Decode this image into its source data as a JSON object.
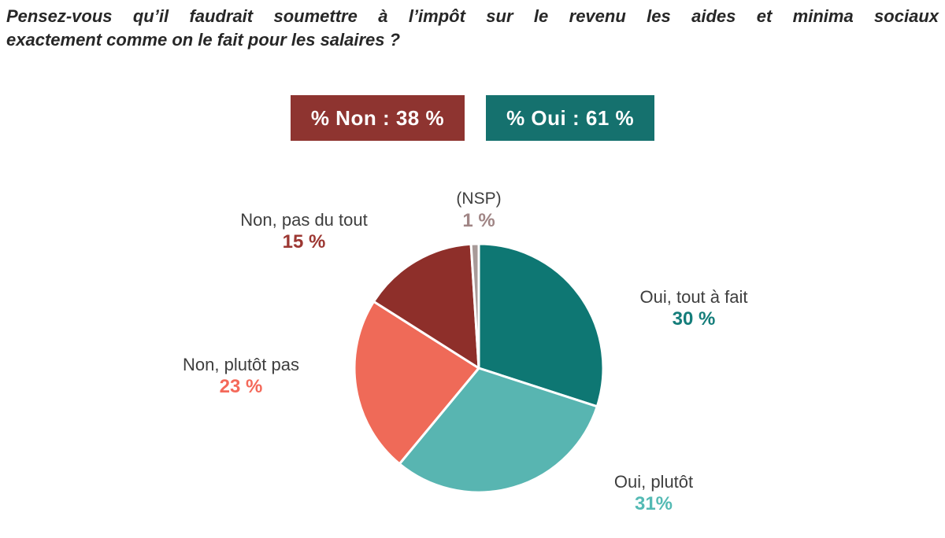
{
  "title": {
    "line1": "Pensez-vous qu’il faudrait soumettre à l’impôt sur le revenu les aides et minima sociaux",
    "line2": "exactement comme on le fait pour les salaires ?"
  },
  "summary_badges": {
    "non": {
      "label": "% Non : 38 %",
      "background": "#8e3430"
    },
    "oui": {
      "label": "% Oui : 61 %",
      "background": "#15716e"
    }
  },
  "chart_data": {
    "type": "pie",
    "title": "Pensez-vous qu’il faudrait soumettre à l’impôt sur le revenu les aides et minima sociaux exactement comme on le fait pour les salaires ?",
    "start_angle": "12 o'clock",
    "direction": "clockwise",
    "totals": {
      "non_pct": 38,
      "oui_pct": 61
    },
    "slices": [
      {
        "label": "Oui, tout à fait",
        "value": 30,
        "value_label": "30 %",
        "color": "#0e7773",
        "text_color": "#147d7a"
      },
      {
        "label": "Oui, plutôt",
        "value": 31,
        "value_label": "31%",
        "color": "#58b5b1",
        "text_color": "#54bab4"
      },
      {
        "label": "Non, plutôt pas",
        "value": 23,
        "value_label": "23 %",
        "color": "#ef6a58",
        "text_color": "#f4695a"
      },
      {
        "label": "Non, pas du tout",
        "value": 15,
        "value_label": "15 %",
        "color": "#8e2f2a",
        "text_color": "#9c3732"
      },
      {
        "label": "(NSP)",
        "value": 1,
        "value_label": "1 %",
        "color": "#a89a98",
        "text_color": "#a08585"
      }
    ]
  }
}
